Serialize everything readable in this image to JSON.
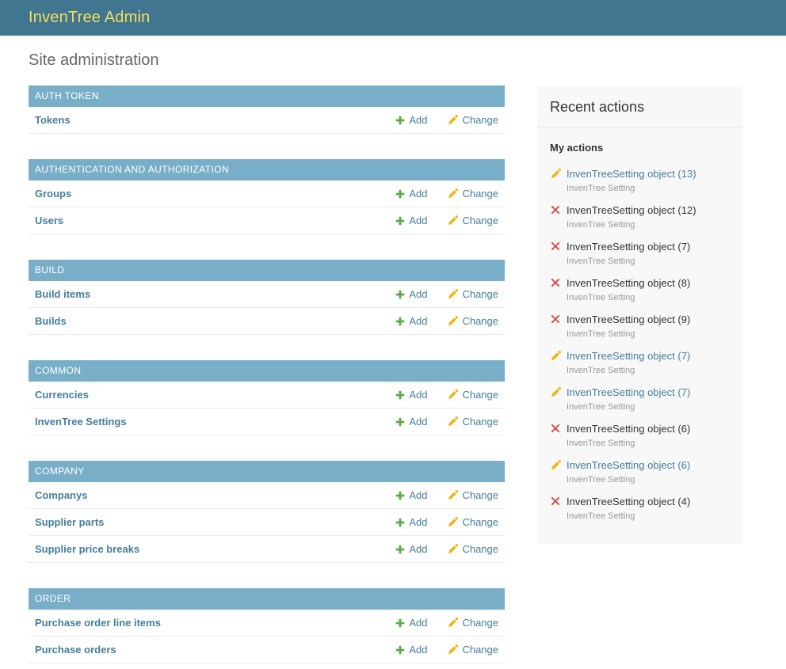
{
  "colors": {
    "header_bg": "#417690",
    "header_title": "#f5dd5d",
    "module_caption_bg": "#79aec8",
    "link_blue": "#447e9b",
    "add_green": "#5aab45",
    "change_gold": "#edb30e",
    "delete_red": "#d9433f",
    "sidebar_bg": "#f8f8f8",
    "muted_text": "#999999"
  },
  "header": {
    "title": "InvenTree Admin"
  },
  "page_title": "Site administration",
  "row_actions": {
    "add": "Add",
    "change": "Change"
  },
  "modules": [
    {
      "caption": "AUTH TOKEN",
      "rows": [
        {
          "label": "Tokens"
        }
      ]
    },
    {
      "caption": "AUTHENTICATION AND AUTHORIZATION",
      "rows": [
        {
          "label": "Groups"
        },
        {
          "label": "Users"
        }
      ]
    },
    {
      "caption": "BUILD",
      "rows": [
        {
          "label": "Build items"
        },
        {
          "label": "Builds"
        }
      ]
    },
    {
      "caption": "COMMON",
      "rows": [
        {
          "label": "Currencies"
        },
        {
          "label": "InvenTree Settings"
        }
      ]
    },
    {
      "caption": "COMPANY",
      "rows": [
        {
          "label": "Companys"
        },
        {
          "label": "Supplier parts"
        },
        {
          "label": "Supplier price breaks"
        }
      ]
    },
    {
      "caption": "ORDER",
      "rows": [
        {
          "label": "Purchase order line items"
        },
        {
          "label": "Purchase orders"
        }
      ]
    }
  ],
  "recent": {
    "title": "Recent actions",
    "subtitle": "My actions",
    "items": [
      {
        "action": "change",
        "label": "InvenTreeSetting object (13)",
        "type": "InvenTree Setting"
      },
      {
        "action": "delete",
        "label": "InvenTreeSetting object (12)",
        "type": "InvenTree Setting"
      },
      {
        "action": "delete",
        "label": "InvenTreeSetting object (7)",
        "type": "InvenTree Setting"
      },
      {
        "action": "delete",
        "label": "InvenTreeSetting object (8)",
        "type": "InvenTree Setting"
      },
      {
        "action": "delete",
        "label": "InvenTreeSetting object (9)",
        "type": "InvenTree Setting"
      },
      {
        "action": "change",
        "label": "InvenTreeSetting object (7)",
        "type": "InvenTree Setting"
      },
      {
        "action": "change",
        "label": "InvenTreeSetting object (7)",
        "type": "InvenTree Setting"
      },
      {
        "action": "delete",
        "label": "InvenTreeSetting object (6)",
        "type": "InvenTree Setting"
      },
      {
        "action": "change",
        "label": "InvenTreeSetting object (6)",
        "type": "InvenTree Setting"
      },
      {
        "action": "delete",
        "label": "InvenTreeSetting object (4)",
        "type": "InvenTree Setting"
      }
    ]
  }
}
